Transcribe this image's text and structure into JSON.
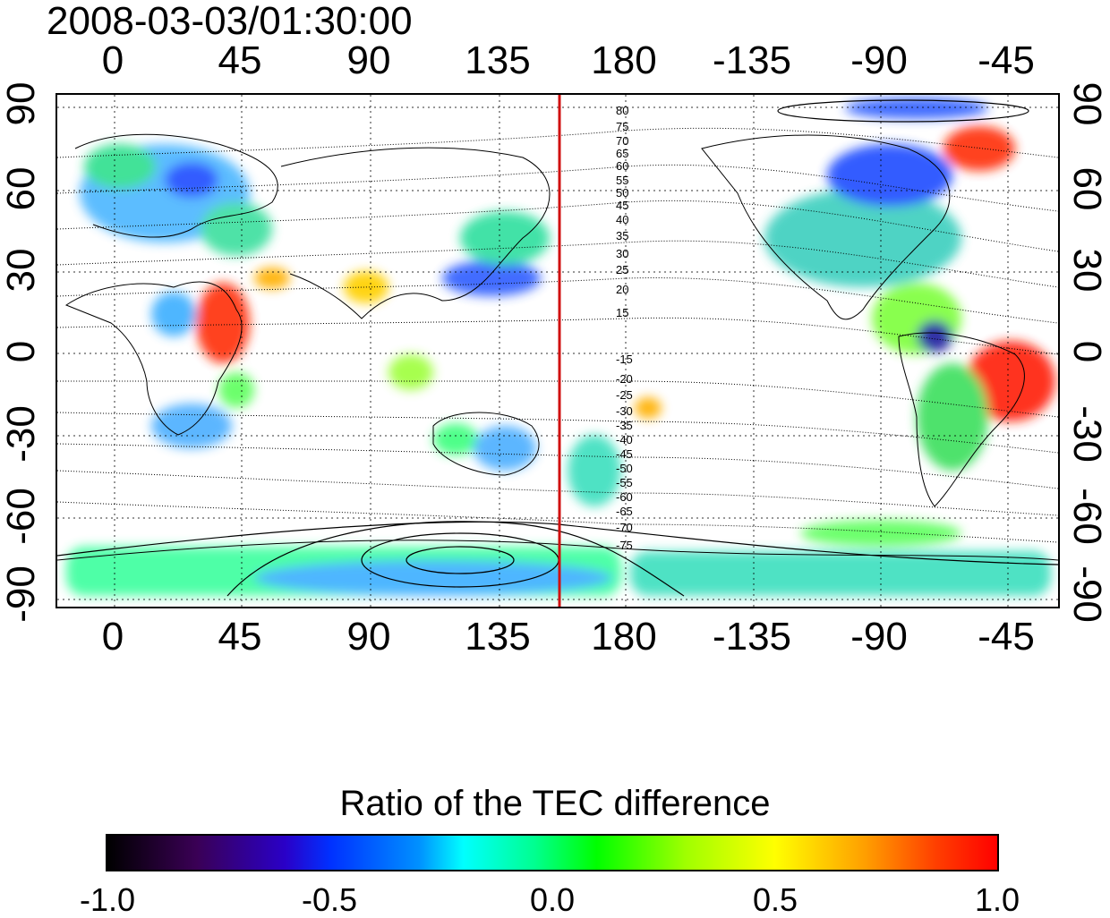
{
  "timestamp": "2008-03-03/01:30:00",
  "x_axis": {
    "ticks": [
      "0",
      "45",
      "90",
      "135",
      "180",
      "-135",
      "-90",
      "-45"
    ]
  },
  "y_axis": {
    "left_ticks": [
      "90",
      "60",
      "30",
      "0",
      "-30",
      "-60",
      "-90"
    ],
    "right_ticks": [
      "90",
      "60",
      "30",
      "0",
      "-30",
      "-60",
      "-90"
    ]
  },
  "meridian_line": {
    "longitude": 160,
    "color": "#d01010"
  },
  "contour_labels_north": [
    "80",
    "75",
    "70",
    "65",
    "60",
    "55",
    "50",
    "45",
    "40",
    "35",
    "30",
    "25",
    "20",
    "15"
  ],
  "contour_labels_south": [
    "-15",
    "-20",
    "-25",
    "-30",
    "-35",
    "-40",
    "-45",
    "-50",
    "-55",
    "-60",
    "-65",
    "-70",
    "-75"
  ],
  "colorbar": {
    "title": "Ratio of the TEC difference",
    "ticks": [
      "-1.0",
      "-0.5",
      "0.0",
      "0.5",
      "1.0"
    ]
  }
}
